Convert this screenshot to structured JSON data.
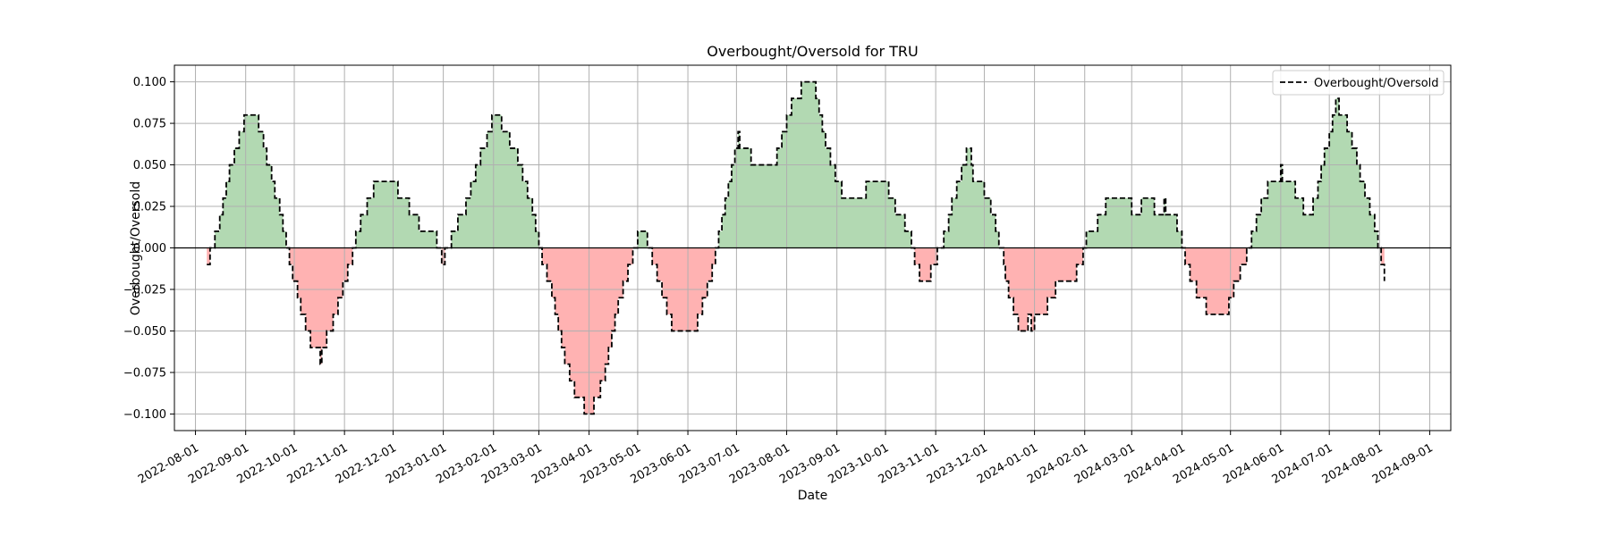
{
  "chart_data": {
    "type": "line",
    "title": "Overbought/Oversold for TRU",
    "xlabel": "Date",
    "ylabel": "Overbought/Oversold",
    "legend": {
      "position": "top-right",
      "entries": [
        "Overbought/Oversold"
      ]
    },
    "grid": true,
    "xlim": [
      "2022-07-19",
      "2024-09-14"
    ],
    "ylim": [
      -0.11,
      0.11
    ],
    "x_ticks": [
      "2022-08-01",
      "2022-09-01",
      "2022-10-01",
      "2022-11-01",
      "2022-12-01",
      "2023-01-01",
      "2023-02-01",
      "2023-03-01",
      "2023-04-01",
      "2023-05-01",
      "2023-06-01",
      "2023-07-01",
      "2023-08-01",
      "2023-09-01",
      "2023-10-01",
      "2023-11-01",
      "2023-12-01",
      "2024-01-01",
      "2024-02-01",
      "2024-03-01",
      "2024-04-01",
      "2024-05-01",
      "2024-06-01",
      "2024-07-01",
      "2024-08-01",
      "2024-09-01"
    ],
    "y_ticks": [
      -0.1,
      -0.075,
      -0.05,
      -0.025,
      0.0,
      0.025,
      0.05,
      0.075,
      0.1
    ],
    "y_tick_labels": [
      "−0.100",
      "−0.075",
      "−0.050",
      "−0.025",
      "0.000",
      "0.025",
      "0.050",
      "0.075",
      "0.100"
    ],
    "colors": {
      "positive_fill": "#b2d9b2",
      "negative_fill": "#ffb2b2",
      "line": "#000000",
      "zero_line": "#000000",
      "grid": "#b0b0b0"
    },
    "series": [
      {
        "name": "Overbought/Oversold",
        "style": "dashed",
        "points": [
          [
            "2022-08-08",
            -0.01
          ],
          [
            "2022-08-10",
            0.0
          ],
          [
            "2022-08-13",
            0.01
          ],
          [
            "2022-08-16",
            0.02
          ],
          [
            "2022-08-18",
            0.03
          ],
          [
            "2022-08-20",
            0.04
          ],
          [
            "2022-08-22",
            0.05
          ],
          [
            "2022-08-25",
            0.06
          ],
          [
            "2022-08-28",
            0.07
          ],
          [
            "2022-08-31",
            0.08
          ],
          [
            "2022-09-07",
            0.08
          ],
          [
            "2022-09-09",
            0.07
          ],
          [
            "2022-09-12",
            0.06
          ],
          [
            "2022-09-14",
            0.05
          ],
          [
            "2022-09-17",
            0.04
          ],
          [
            "2022-09-19",
            0.03
          ],
          [
            "2022-09-22",
            0.02
          ],
          [
            "2022-09-24",
            0.01
          ],
          [
            "2022-09-26",
            0.0
          ],
          [
            "2022-09-28",
            -0.01
          ],
          [
            "2022-09-30",
            -0.02
          ],
          [
            "2022-10-03",
            -0.03
          ],
          [
            "2022-10-05",
            -0.04
          ],
          [
            "2022-10-08",
            -0.05
          ],
          [
            "2022-10-11",
            -0.06
          ],
          [
            "2022-10-17",
            -0.07
          ],
          [
            "2022-10-18",
            -0.06
          ],
          [
            "2022-10-21",
            -0.05
          ],
          [
            "2022-10-25",
            -0.04
          ],
          [
            "2022-10-28",
            -0.03
          ],
          [
            "2022-10-31",
            -0.02
          ],
          [
            "2022-11-03",
            -0.01
          ],
          [
            "2022-11-06",
            0.0
          ],
          [
            "2022-11-08",
            0.01
          ],
          [
            "2022-11-11",
            0.02
          ],
          [
            "2022-11-15",
            0.03
          ],
          [
            "2022-11-19",
            0.04
          ],
          [
            "2022-12-04",
            0.03
          ],
          [
            "2022-12-11",
            0.02
          ],
          [
            "2022-12-17",
            0.01
          ],
          [
            "2022-12-28",
            0.0
          ],
          [
            "2022-12-31",
            -0.01
          ],
          [
            "2023-01-02",
            0.0
          ],
          [
            "2023-01-06",
            0.01
          ],
          [
            "2023-01-10",
            0.02
          ],
          [
            "2023-01-15",
            0.03
          ],
          [
            "2023-01-18",
            0.04
          ],
          [
            "2023-01-21",
            0.05
          ],
          [
            "2023-01-24",
            0.06
          ],
          [
            "2023-01-28",
            0.07
          ],
          [
            "2023-01-31",
            0.08
          ],
          [
            "2023-02-06",
            0.07
          ],
          [
            "2023-02-11",
            0.06
          ],
          [
            "2023-02-16",
            0.05
          ],
          [
            "2023-02-19",
            0.04
          ],
          [
            "2023-02-22",
            0.03
          ],
          [
            "2023-02-25",
            0.02
          ],
          [
            "2023-02-27",
            0.01
          ],
          [
            "2023-03-01",
            0.0
          ],
          [
            "2023-03-03",
            -0.01
          ],
          [
            "2023-03-06",
            -0.02
          ],
          [
            "2023-03-09",
            -0.03
          ],
          [
            "2023-03-11",
            -0.04
          ],
          [
            "2023-03-13",
            -0.05
          ],
          [
            "2023-03-15",
            -0.06
          ],
          [
            "2023-03-17",
            -0.07
          ],
          [
            "2023-03-20",
            -0.08
          ],
          [
            "2023-03-23",
            -0.09
          ],
          [
            "2023-03-29",
            -0.1
          ],
          [
            "2023-04-04",
            -0.09
          ],
          [
            "2023-04-08",
            -0.08
          ],
          [
            "2023-04-11",
            -0.07
          ],
          [
            "2023-04-13",
            -0.06
          ],
          [
            "2023-04-15",
            -0.05
          ],
          [
            "2023-04-17",
            -0.04
          ],
          [
            "2023-04-19",
            -0.03
          ],
          [
            "2023-04-22",
            -0.02
          ],
          [
            "2023-04-25",
            -0.01
          ],
          [
            "2023-04-28",
            0.0
          ],
          [
            "2023-05-01",
            0.01
          ],
          [
            "2023-05-07",
            0.0
          ],
          [
            "2023-05-10",
            -0.01
          ],
          [
            "2023-05-13",
            -0.02
          ],
          [
            "2023-05-16",
            -0.03
          ],
          [
            "2023-05-19",
            -0.04
          ],
          [
            "2023-05-22",
            -0.05
          ],
          [
            "2023-06-07",
            -0.04
          ],
          [
            "2023-06-10",
            -0.03
          ],
          [
            "2023-06-13",
            -0.02
          ],
          [
            "2023-06-16",
            -0.01
          ],
          [
            "2023-06-18",
            0.0
          ],
          [
            "2023-06-20",
            0.01
          ],
          [
            "2023-06-22",
            0.02
          ],
          [
            "2023-06-24",
            0.03
          ],
          [
            "2023-06-26",
            0.04
          ],
          [
            "2023-06-28",
            0.05
          ],
          [
            "2023-06-30",
            0.06
          ],
          [
            "2023-07-02",
            0.07
          ],
          [
            "2023-07-03",
            0.06
          ],
          [
            "2023-07-10",
            0.05
          ],
          [
            "2023-07-26",
            0.06
          ],
          [
            "2023-07-29",
            0.07
          ],
          [
            "2023-08-01",
            0.08
          ],
          [
            "2023-08-04",
            0.09
          ],
          [
            "2023-08-10",
            0.1
          ],
          [
            "2023-08-19",
            0.09
          ],
          [
            "2023-08-21",
            0.08
          ],
          [
            "2023-08-23",
            0.07
          ],
          [
            "2023-08-25",
            0.06
          ],
          [
            "2023-08-28",
            0.05
          ],
          [
            "2023-08-31",
            0.04
          ],
          [
            "2023-09-04",
            0.03
          ],
          [
            "2023-09-19",
            0.04
          ],
          [
            "2023-10-03",
            0.03
          ],
          [
            "2023-10-07",
            0.02
          ],
          [
            "2023-10-13",
            0.01
          ],
          [
            "2023-10-17",
            0.0
          ],
          [
            "2023-10-19",
            -0.01
          ],
          [
            "2023-10-22",
            -0.02
          ],
          [
            "2023-10-29",
            -0.01
          ],
          [
            "2023-11-02",
            0.0
          ],
          [
            "2023-11-06",
            0.01
          ],
          [
            "2023-11-09",
            0.02
          ],
          [
            "2023-11-11",
            0.03
          ],
          [
            "2023-11-14",
            0.04
          ],
          [
            "2023-11-17",
            0.05
          ],
          [
            "2023-11-20",
            0.06
          ],
          [
            "2023-11-23",
            0.05
          ],
          [
            "2023-11-24",
            0.04
          ],
          [
            "2023-12-01",
            0.03
          ],
          [
            "2023-12-05",
            0.02
          ],
          [
            "2023-12-08",
            0.01
          ],
          [
            "2023-12-10",
            0.0
          ],
          [
            "2023-12-13",
            -0.01
          ],
          [
            "2023-12-14",
            -0.02
          ],
          [
            "2023-12-16",
            -0.03
          ],
          [
            "2023-12-19",
            -0.04
          ],
          [
            "2023-12-22",
            -0.05
          ],
          [
            "2023-12-28",
            -0.04
          ],
          [
            "2023-12-30",
            -0.05
          ],
          [
            "2024-01-01",
            -0.04
          ],
          [
            "2024-01-09",
            -0.03
          ],
          [
            "2024-01-14",
            -0.02
          ],
          [
            "2024-01-27",
            -0.01
          ],
          [
            "2024-01-31",
            0.0
          ],
          [
            "2024-02-02",
            0.01
          ],
          [
            "2024-02-09",
            0.02
          ],
          [
            "2024-02-14",
            0.03
          ],
          [
            "2024-03-01",
            0.02
          ],
          [
            "2024-03-07",
            0.03
          ],
          [
            "2024-03-15",
            0.02
          ],
          [
            "2024-03-21",
            0.03
          ],
          [
            "2024-03-22",
            0.02
          ],
          [
            "2024-03-29",
            0.01
          ],
          [
            "2024-04-01",
            0.0
          ],
          [
            "2024-04-03",
            -0.01
          ],
          [
            "2024-04-06",
            -0.02
          ],
          [
            "2024-04-10",
            -0.03
          ],
          [
            "2024-04-16",
            -0.04
          ],
          [
            "2024-04-30",
            -0.03
          ],
          [
            "2024-05-03",
            -0.02
          ],
          [
            "2024-05-07",
            -0.01
          ],
          [
            "2024-05-11",
            0.0
          ],
          [
            "2024-05-14",
            0.01
          ],
          [
            "2024-05-17",
            0.02
          ],
          [
            "2024-05-20",
            0.03
          ],
          [
            "2024-05-24",
            0.04
          ],
          [
            "2024-06-01",
            0.05
          ],
          [
            "2024-06-02",
            0.04
          ],
          [
            "2024-06-10",
            0.03
          ],
          [
            "2024-06-15",
            0.02
          ],
          [
            "2024-06-21",
            0.03
          ],
          [
            "2024-06-24",
            0.04
          ],
          [
            "2024-06-26",
            0.05
          ],
          [
            "2024-06-28",
            0.06
          ],
          [
            "2024-07-01",
            0.07
          ],
          [
            "2024-07-03",
            0.08
          ],
          [
            "2024-07-05",
            0.09
          ],
          [
            "2024-07-07",
            0.08
          ],
          [
            "2024-07-12",
            0.07
          ],
          [
            "2024-07-15",
            0.06
          ],
          [
            "2024-07-18",
            0.05
          ],
          [
            "2024-07-20",
            0.04
          ],
          [
            "2024-07-23",
            0.03
          ],
          [
            "2024-07-26",
            0.02
          ],
          [
            "2024-07-29",
            0.01
          ],
          [
            "2024-07-31",
            0.0
          ],
          [
            "2024-08-02",
            -0.01
          ],
          [
            "2024-08-04",
            -0.02
          ]
        ]
      }
    ]
  }
}
